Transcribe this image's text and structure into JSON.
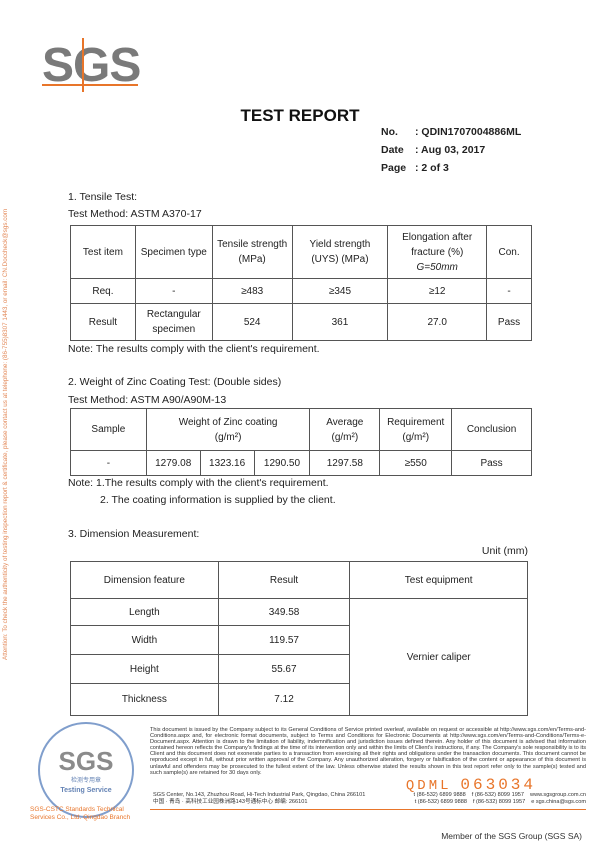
{
  "header": {
    "logo": "SGS",
    "title": "TEST REPORT",
    "no_label": "No.",
    "no_value": "QDIN1707004886ML",
    "date_label": "Date",
    "date_value": "Aug 03, 2017",
    "page_label": "Page",
    "page_value": "2 of 3"
  },
  "side_notice": "Attention: To check the authenticity of testing inspection report & certificate, please contact us at telephone: (86-755)8307 1443, or email: CN.Doccheck@sgs.com",
  "tensile": {
    "heading": "1. Tensile Test:",
    "method": "Test Method: ASTM A370-17",
    "headers": [
      "Test item",
      "Specimen type",
      "Tensile strength (MPa)",
      "Yield strength (UYS) (MPa)",
      "Elongation after fracture (%)",
      "Con."
    ],
    "gauge": "G=50mm",
    "rows": [
      [
        "Req.",
        "-",
        "≥483",
        "≥345",
        "≥12",
        "-"
      ],
      [
        "Result",
        "Rectangular specimen",
        "524",
        "361",
        "27.0",
        "Pass"
      ]
    ],
    "note": "Note: The results comply with the client's requirement."
  },
  "zinc": {
    "heading": "2. Weight of Zinc Coating Test: (Double sides)",
    "method": "Test Method: ASTM A90/A90M-13",
    "headers": [
      "Sample",
      "Weight of Zinc coating",
      "Average",
      "Requirement",
      "Conclusion"
    ],
    "unit": "(g/m²)",
    "row": [
      "-",
      "1279.08",
      "1323.16",
      "1290.50",
      "1297.58",
      "≥550",
      "Pass"
    ],
    "note1": "Note:  1.The results comply with the client's requirement.",
    "note2": "2. The coating information is supplied by the client."
  },
  "dimension": {
    "heading": "3. Dimension Measurement:",
    "unit": "Unit (mm)",
    "headers": [
      "Dimension feature",
      "Result",
      "Test equipment"
    ],
    "rows": [
      [
        "Length",
        "349.58"
      ],
      [
        "Width",
        "119.57"
      ],
      [
        "Height",
        "55.67"
      ],
      [
        "Thickness",
        "7.12"
      ]
    ],
    "equipment": "Vernier caliper"
  },
  "footer": {
    "fine_print": "This document is issued by the Company subject to its General Conditions of Service printed overleaf, available on request or accessible at http://www.sgs.com/en/Terms-and-Conditions.aspx and, for electronic format documents, subject to Terms and Conditions for Electronic Documents at http://www.sgs.com/en/Terms-and-Conditions/Terms-e-Document.aspx. Attention is drawn to the limitation of liability, indemnification and jurisdiction issues defined therein. Any holder of this document is advised that information contained hereon reflects the Company's findings at the time of its intervention only and within the limits of Client's instructions, if any. The Company's sole responsibility is to its Client and this document does not exonerate parties to a transaction from exercising all their rights and obligations under the transaction documents. This document cannot be reproduced except in full, without prior written approval of the Company. Any unauthorized alteration, forgery or falsification of the content or appearance of this document is unlawful and offenders may be prosecuted to the fullest extent of the law. Unless otherwise stated the results shown in this test report refer only to the sample(s) tested and such sample(s) are retained for 30 days only.",
    "serial_prefix": "QDML",
    "serial_number": "063034",
    "addr_en": "SGS Center, No.143, Zhuzhou Road, Hi-Tech Industrial Park, Qingdao, China  266101",
    "tel": "t (86-532) 6899 9888",
    "fax": "f (86-532) 8099 1957",
    "web": "www.sgsgroup.com.cn",
    "addr_cn": "中国 · 青岛 · 高科技工业园株洲路143号通标中心    邮编: 266101",
    "email": "e  sgs.china@sgs.com",
    "member": "Member of the SGS Group (SGS SA)",
    "stamp": {
      "logo": "SGS",
      "cn": "检测专用章",
      "en": "Testing Service",
      "ring": "SGS-CSTC Standards Technical Services Co., Ltd. Qingdao Branch"
    }
  },
  "colors": {
    "accent": "#e8752a",
    "stamp": "#6a8ec4",
    "logo_gray": "#7a7a7a"
  }
}
